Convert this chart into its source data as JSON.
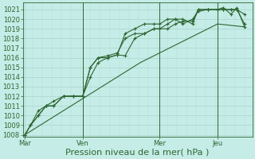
{
  "background_color": "#c5ece6",
  "grid_color_major": "#a8d4ce",
  "grid_color_minor": "#b8ddd8",
  "line_color": "#2d6632",
  "title": "",
  "xlabel": "Pression niveau de la mer( hPa )",
  "ylim": [
    1008,
    1021.5
  ],
  "yticks": [
    1008,
    1009,
    1010,
    1011,
    1012,
    1013,
    1014,
    1015,
    1016,
    1017,
    1018,
    1019,
    1020,
    1021
  ],
  "xtick_labels": [
    "Mar",
    "Ven",
    "Mer",
    "Jeu"
  ],
  "xtick_positions": [
    0,
    3,
    7,
    10
  ],
  "xlim": [
    -0.1,
    11.8
  ],
  "series": [
    {
      "x": [
        0,
        0.3,
        0.7,
        1.1,
        1.5,
        2.0,
        2.5,
        3.0,
        3.4,
        3.8,
        4.3,
        4.8,
        5.2,
        5.7,
        6.2,
        6.7,
        7.0,
        7.4,
        7.8,
        8.2,
        8.7,
        9.0,
        9.5,
        10.0,
        10.3,
        10.7,
        11.0,
        11.4
      ],
      "y": [
        1008,
        1009,
        1010.5,
        1011,
        1011.5,
        1012,
        1012,
        1012,
        1015,
        1016,
        1016,
        1016.3,
        1016.2,
        1018,
        1018.5,
        1019,
        1019,
        1019,
        1019.5,
        1019.8,
        1019.8,
        1021,
        1021,
        1021,
        1021,
        1021,
        1021,
        1019.5
      ],
      "marker": true
    },
    {
      "x": [
        0,
        0.3,
        0.7,
        1.1,
        1.5,
        2.0,
        2.5,
        3.0,
        3.4,
        3.8,
        4.3,
        4.8,
        5.2,
        5.7,
        6.2,
        6.7,
        7.0,
        7.4,
        7.8,
        8.2,
        8.7,
        9.0,
        9.5,
        10.0,
        10.3,
        10.7,
        11.0,
        11.4
      ],
      "y": [
        1008,
        1009,
        1010,
        1011,
        1011,
        1012,
        1012,
        1012,
        1014,
        1015.5,
        1016,
        1016.3,
        1018.5,
        1019,
        1019.5,
        1019.5,
        1019.5,
        1020,
        1020,
        1020,
        1019.5,
        1021,
        1021,
        1021,
        1021.2,
        1020.5,
        1021.2,
        1019.2
      ],
      "marker": true
    },
    {
      "x": [
        0,
        0.3,
        0.7,
        1.1,
        1.5,
        2.0,
        2.5,
        3.0,
        3.4,
        3.8,
        4.3,
        4.8,
        5.2,
        5.7,
        6.2,
        6.7,
        7.0,
        7.4,
        7.8,
        8.2,
        8.7,
        9.0,
        9.5,
        10.0,
        10.3,
        10.7,
        11.0,
        11.4
      ],
      "y": [
        1008,
        1009,
        1010,
        1011,
        1011,
        1012,
        1012,
        1012,
        1015,
        1016,
        1016.2,
        1016.5,
        1018,
        1018.5,
        1018.5,
        1019.0,
        1019.0,
        1019.5,
        1020,
        1019.5,
        1020,
        1020.8,
        1021,
        1021,
        1021,
        1021,
        1021,
        1020.5
      ],
      "marker": true
    },
    {
      "x": [
        0,
        2.0,
        4.0,
        6.0,
        8.0,
        10.0,
        11.4
      ],
      "y": [
        1008,
        1010.5,
        1013.0,
        1015.5,
        1017.5,
        1019.5,
        1019.2
      ],
      "marker": false
    }
  ],
  "vline_positions": [
    3,
    7,
    10
  ],
  "font_color": "#2d6632",
  "tick_fontsize": 6,
  "xlabel_fontsize": 8
}
